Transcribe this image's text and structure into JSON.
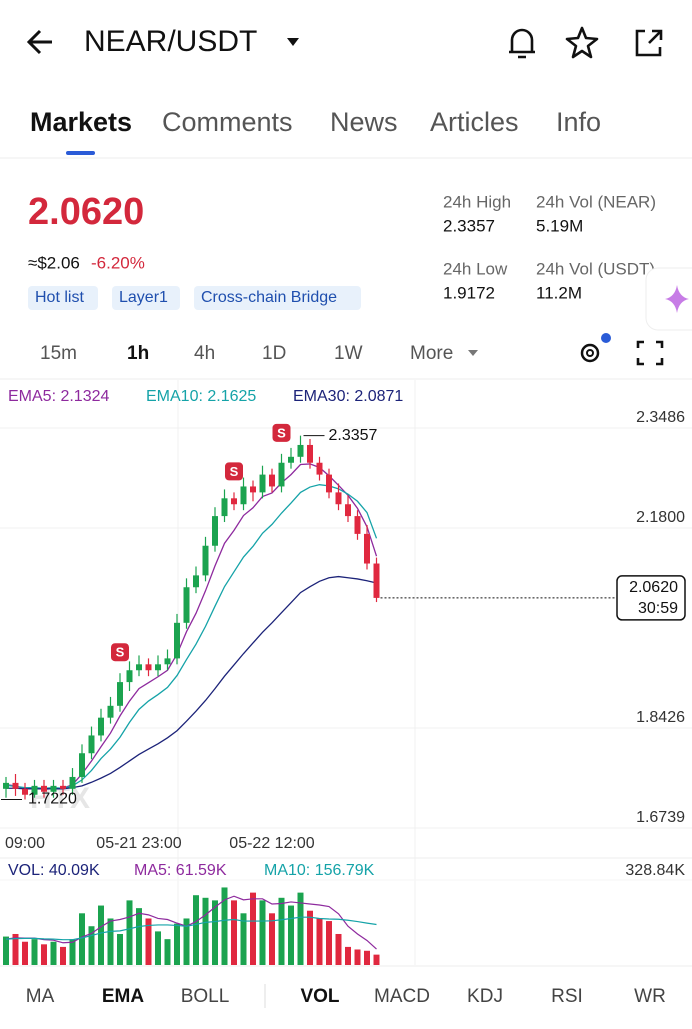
{
  "header": {
    "title": "NEAR/USDT"
  },
  "tabs": [
    "Markets",
    "Comments",
    "News",
    "Articles",
    "Info"
  ],
  "price": {
    "last": "2.0620",
    "usd": "≈$2.06",
    "change": "-6.20%"
  },
  "stats": [
    {
      "label": "24h High",
      "value": "2.3357"
    },
    {
      "label": "24h Vol (NEAR)",
      "value": "5.19M"
    },
    {
      "label": "24h Low",
      "value": "1.9172"
    },
    {
      "label": "24h Vol (USDT)",
      "value": "11.2M"
    }
  ],
  "tags": [
    "Hot list",
    "Layer1",
    "Cross-chain Bridge"
  ],
  "intervals": [
    "15m",
    "1h",
    "4h",
    "1D",
    "1W",
    "More"
  ],
  "chart_data": {
    "type": "candlestick",
    "categories": [
      null,
      null,
      "09:00",
      null,
      null,
      null,
      null,
      null,
      null,
      null,
      null,
      null,
      null,
      null,
      "05-21 23:00",
      null,
      null,
      null,
      null,
      null,
      null,
      null,
      null,
      null,
      null,
      null,
      null,
      null,
      "05-22 12:00",
      null,
      null,
      null,
      null,
      null,
      null,
      null,
      null,
      null,
      null,
      null
    ],
    "open": [
      1.74,
      1.75,
      1.74,
      1.73,
      1.745,
      1.735,
      1.745,
      1.74,
      1.76,
      1.8,
      1.83,
      1.86,
      1.88,
      1.92,
      1.94,
      1.95,
      1.94,
      1.95,
      1.96,
      2.02,
      2.08,
      2.1,
      2.15,
      2.2,
      2.23,
      2.22,
      2.25,
      2.24,
      2.27,
      2.25,
      2.29,
      2.3,
      2.32,
      2.29,
      2.27,
      2.24,
      2.22,
      2.2,
      2.17,
      2.12
    ],
    "high": [
      1.76,
      1.765,
      1.75,
      1.755,
      1.755,
      1.755,
      1.755,
      1.775,
      1.815,
      1.845,
      1.875,
      1.895,
      1.935,
      1.955,
      1.965,
      1.96,
      1.965,
      1.975,
      2.035,
      2.095,
      2.115,
      2.165,
      2.215,
      2.245,
      2.24,
      2.265,
      2.26,
      2.285,
      2.28,
      2.305,
      2.315,
      2.3357,
      2.33,
      2.3,
      2.28,
      2.255,
      2.235,
      2.21,
      2.185,
      2.13
    ],
    "low": [
      1.725,
      1.728,
      1.722,
      1.725,
      1.725,
      1.725,
      1.73,
      1.73,
      1.75,
      1.79,
      1.82,
      1.85,
      1.87,
      1.905,
      1.93,
      1.93,
      1.93,
      1.94,
      1.95,
      2.01,
      2.07,
      2.09,
      2.14,
      2.19,
      2.21,
      2.21,
      2.225,
      2.23,
      2.24,
      2.24,
      2.28,
      2.29,
      2.28,
      2.26,
      2.23,
      2.21,
      2.19,
      2.16,
      2.11,
      2.055
    ],
    "close": [
      1.75,
      1.74,
      1.73,
      1.745,
      1.735,
      1.745,
      1.74,
      1.76,
      1.8,
      1.83,
      1.86,
      1.88,
      1.92,
      1.94,
      1.95,
      1.94,
      1.95,
      1.96,
      2.02,
      2.08,
      2.1,
      2.15,
      2.2,
      2.23,
      2.22,
      2.25,
      2.24,
      2.27,
      2.25,
      2.29,
      2.3,
      2.32,
      2.29,
      2.27,
      2.24,
      2.22,
      2.2,
      2.17,
      2.12,
      2.062
    ],
    "up_color": "#1ba34f",
    "down_color": "#e0283f",
    "ylim": [
      1.6739,
      2.3486
    ],
    "yticks": [
      1.6739,
      1.8426,
      {
        "value": 2.18,
        "label": "2.1800"
      },
      2.3486
    ],
    "grid": true,
    "high_label": {
      "value": 2.3357,
      "label": "2.3357"
    },
    "low_label": {
      "value": 1.722,
      "label": "1.7220"
    },
    "last_price": {
      "value": 2.062,
      "label": "2.0620",
      "countdown": "30:59"
    },
    "watermark": "HTX",
    "sell_signals": {
      "label": "S",
      "at": [
        12,
        24,
        29
      ]
    },
    "indicators": [
      {
        "name": "EMA5: 2.1324",
        "color": "#8e2a9e",
        "values": [
          1.747,
          1.745,
          1.74,
          1.742,
          1.739,
          1.741,
          1.741,
          1.747,
          1.765,
          1.787,
          1.811,
          1.834,
          1.863,
          1.888,
          1.909,
          1.919,
          1.929,
          1.94,
          1.967,
          2.005,
          2.036,
          2.074,
          2.116,
          2.154,
          2.176,
          2.201,
          2.214,
          2.233,
          2.239,
          2.256,
          2.27,
          2.287,
          2.288,
          2.282,
          2.268,
          2.252,
          2.235,
          2.213,
          2.182,
          2.1324
        ]
      },
      {
        "name": "EMA10: 2.1625",
        "color": "#15a3a8",
        "values": [
          1.746,
          1.744,
          1.742,
          1.742,
          1.741,
          1.742,
          1.741,
          1.745,
          1.755,
          1.771,
          1.791,
          1.807,
          1.827,
          1.852,
          1.874,
          1.888,
          1.899,
          1.911,
          1.931,
          1.958,
          1.984,
          2.014,
          2.048,
          2.081,
          2.106,
          2.131,
          2.149,
          2.171,
          2.186,
          2.205,
          2.222,
          2.24,
          2.249,
          2.253,
          2.251,
          2.246,
          2.237,
          2.225,
          2.206,
          2.1625
        ]
      },
      {
        "name": "EMA30: 2.0871",
        "color": "#1c2379",
        "values": [
          1.741,
          1.741,
          1.74,
          1.74,
          1.74,
          1.74,
          1.74,
          1.742,
          1.745,
          1.751,
          1.758,
          1.766,
          1.776,
          1.787,
          1.798,
          1.807,
          1.816,
          1.826,
          1.838,
          1.854,
          1.871,
          1.889,
          1.909,
          1.93,
          1.949,
          1.968,
          1.986,
          2.004,
          2.02,
          2.037,
          2.054,
          2.071,
          2.081,
          2.09,
          2.096,
          2.098,
          2.096,
          2.094,
          2.091,
          2.0871
        ]
      }
    ],
    "volume": {
      "ylim": [
        0,
        328.84
      ],
      "yticks": [
        {
          "value": 328.84,
          "label": "328.84K"
        }
      ],
      "values": [
        110,
        120,
        90,
        100,
        80,
        90,
        70,
        100,
        200,
        150,
        230,
        180,
        120,
        250,
        220,
        180,
        130,
        100,
        160,
        180,
        270,
        260,
        250,
        300,
        250,
        200,
        280,
        250,
        200,
        260,
        230,
        280,
        210,
        180,
        170,
        120,
        70,
        60,
        55,
        40.09
      ],
      "lines": [
        {
          "name": "VOL: 40.09K",
          "color": "#1c2379",
          "values": null
        },
        {
          "name": "MA5: 61.59K",
          "color": "#8e2a9e",
          "values": [
            100,
            105,
            104,
            104,
            98,
            96,
            86,
            88,
            108,
            122,
            148,
            170,
            176,
            186,
            200,
            194,
            180,
            176,
            162,
            150,
            168,
            194,
            224,
            252,
            266,
            252,
            256,
            256,
            236,
            238,
            244,
            240,
            236,
            232,
            226,
            198,
            150,
            120,
            95,
            61.59
          ]
        },
        {
          "name": "MA10: 156.79K",
          "color": "#15a3a8",
          "values": [
            100,
            102,
            103,
            103,
            101,
            100,
            98,
            98,
            105,
            114,
            124,
            130,
            132,
            140,
            149,
            153,
            155,
            155,
            153,
            150,
            157,
            165,
            168,
            173,
            176,
            170,
            170,
            170,
            171,
            175,
            180,
            185,
            185,
            180,
            178,
            177,
            173,
            168,
            162,
            156.79
          ]
        }
      ]
    }
  },
  "indicator_tabs": [
    "MA",
    "EMA",
    "BOLL",
    "VOL",
    "MACD",
    "KDJ",
    "RSI",
    "WR"
  ]
}
